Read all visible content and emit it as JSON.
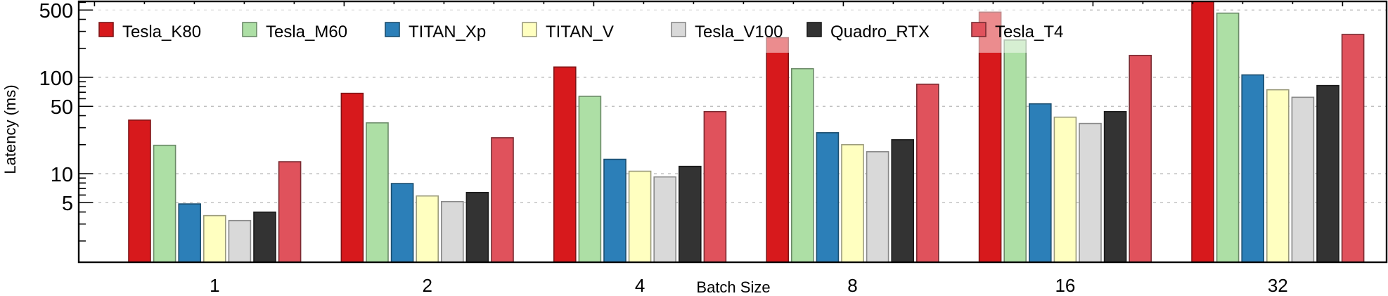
{
  "chart_data": {
    "type": "bar",
    "title": "",
    "xlabel": "Batch Size",
    "ylabel": "Latency (ms)",
    "yscale": "log",
    "ylim": [
      1.2,
      614
    ],
    "yticks": [
      5,
      10,
      50,
      100,
      500
    ],
    "ytick_labels": [
      "5",
      "10",
      "50",
      "100",
      "500"
    ],
    "grid": true,
    "legend_position": "top-left",
    "categories": [
      "1",
      "2",
      "4",
      "8",
      "16",
      "32"
    ],
    "series": [
      {
        "name": "Tesla_K80",
        "color": "#d7191c",
        "edge": "#7f1416",
        "values": [
          36.0,
          68.3,
          128,
          258,
          475,
          650
        ]
      },
      {
        "name": "Tesla_M60",
        "color": "#addfa5",
        "edge": "#6b8a68",
        "values": [
          19.7,
          33.7,
          63.5,
          123,
          244,
          464
        ]
      },
      {
        "name": "TITAN_Xp",
        "color": "#2c7fb8",
        "edge": "#1b4e6f",
        "values": [
          4.85,
          7.9,
          14.1,
          26.6,
          53.1,
          106
        ]
      },
      {
        "name": "TITAN_V",
        "color": "#ffffc0",
        "edge": "#9b9b7c",
        "values": [
          3.67,
          5.87,
          10.6,
          20.0,
          38.6,
          74.3
        ]
      },
      {
        "name": "Tesla_V100",
        "color": "#d9d9d9",
        "edge": "#888888",
        "values": [
          3.26,
          5.13,
          9.25,
          16.9,
          33.2,
          62.1
        ]
      },
      {
        "name": "Quadro_RTX",
        "color": "#333333",
        "edge": "#1a1a1a",
        "values": [
          3.99,
          6.38,
          11.9,
          22.5,
          44.1,
          82.2
        ]
      },
      {
        "name": "Tesla_T4",
        "color": "#e0525c",
        "edge": "#7a2a31",
        "values": [
          13.3,
          23.6,
          44.1,
          84.9,
          169,
          279
        ]
      }
    ]
  }
}
